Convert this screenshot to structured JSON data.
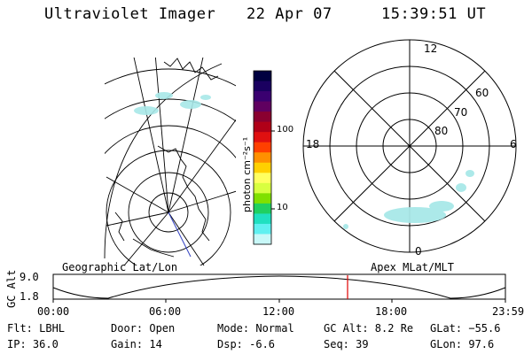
{
  "header": {
    "instrument": "Ultraviolet Imager",
    "date": "22 Apr 07",
    "time": "15:39:51 UT"
  },
  "colorbar": {
    "label": "photon cm⁻²s⁻¹",
    "ticks": [
      "100",
      "10"
    ],
    "colors": [
      "#000040",
      "#1a0060",
      "#3a0070",
      "#600060",
      "#8a0030",
      "#b00018",
      "#e01010",
      "#ff4000",
      "#ff9000",
      "#ffd000",
      "#ffff60",
      "#d8ff40",
      "#80e000",
      "#20d060",
      "#20e0c0",
      "#60f0f0",
      "#c8f8f8"
    ]
  },
  "polar_plot": {
    "mlt_labels": {
      "top": "12",
      "left": "18",
      "right": "6",
      "bottom": "0"
    },
    "lat_labels": [
      "60",
      "70",
      "80"
    ]
  },
  "orbit_panel": {
    "left_title": "Geographic Lat/Lon",
    "right_title": "Apex MLat/MLT",
    "axis_label": "GC Alt",
    "y_ticks": [
      "9.0",
      "1.8"
    ],
    "x_ticks": [
      "00:00",
      "06:00",
      "12:00",
      "18:00",
      "23:59"
    ]
  },
  "status": {
    "flt": "Flt: LBHL",
    "ip": "IP: 36.0",
    "door": "Door: Open",
    "gain": "Gain: 14",
    "mode": "Mode: Normal",
    "dsp": "Dsp:    -6.6",
    "gc_alt": "GC Alt: 8.2 Re",
    "seq": "Seq: 39",
    "glat": "GLat:  −55.6",
    "glon": "GLon:  97.6"
  },
  "colors": {
    "marker": "#e00000",
    "aurora": "#a8e8e8",
    "track": "#3040c0"
  }
}
